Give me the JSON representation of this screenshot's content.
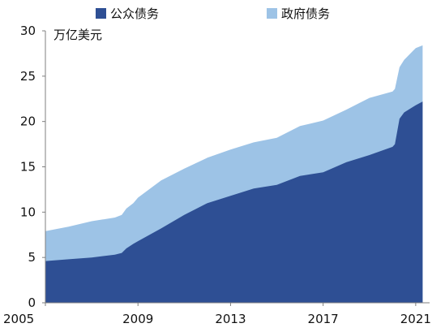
{
  "chart_data": {
    "type": "area",
    "stacked": true,
    "ylabel": "万亿美元",
    "ylim": [
      0,
      30
    ],
    "xlim": [
      2005,
      2021.6
    ],
    "yticks": [
      0,
      5,
      10,
      15,
      20,
      25,
      30
    ],
    "xticks": [
      2005,
      2009,
      2013,
      2017,
      2021
    ],
    "grid": false,
    "legend_position": "top",
    "series": [
      {
        "name": "公众债务",
        "color": "#2e4f94",
        "points": [
          [
            2005,
            4.6
          ],
          [
            2006,
            4.8
          ],
          [
            2007,
            5.0
          ],
          [
            2008,
            5.3
          ],
          [
            2008.3,
            5.5
          ],
          [
            2008.5,
            6.0
          ],
          [
            2008.8,
            6.5
          ],
          [
            2009,
            6.8
          ],
          [
            2010,
            8.2
          ],
          [
            2011,
            9.7
          ],
          [
            2012,
            11.0
          ],
          [
            2013,
            11.8
          ],
          [
            2014,
            12.6
          ],
          [
            2015,
            13.0
          ],
          [
            2016,
            14.0
          ],
          [
            2017,
            14.4
          ],
          [
            2018,
            15.5
          ],
          [
            2019,
            16.3
          ],
          [
            2020,
            17.2
          ],
          [
            2020.1,
            17.5
          ],
          [
            2020.3,
            20.3
          ],
          [
            2020.5,
            21.0
          ],
          [
            2021,
            21.8
          ],
          [
            2021.3,
            22.2
          ]
        ]
      },
      {
        "name": "政府债务",
        "color": "#9dc3e6",
        "points": [
          [
            2005,
            7.9
          ],
          [
            2006,
            8.4
          ],
          [
            2007,
            9.0
          ],
          [
            2008,
            9.4
          ],
          [
            2008.3,
            9.7
          ],
          [
            2008.5,
            10.4
          ],
          [
            2008.8,
            11.0
          ],
          [
            2009,
            11.6
          ],
          [
            2010,
            13.5
          ],
          [
            2011,
            14.8
          ],
          [
            2012,
            16.0
          ],
          [
            2013,
            16.9
          ],
          [
            2014,
            17.7
          ],
          [
            2015,
            18.2
          ],
          [
            2016,
            19.5
          ],
          [
            2017,
            20.1
          ],
          [
            2018,
            21.3
          ],
          [
            2019,
            22.6
          ],
          [
            2020,
            23.3
          ],
          [
            2020.1,
            23.6
          ],
          [
            2020.3,
            26.0
          ],
          [
            2020.5,
            26.8
          ],
          [
            2021,
            28.1
          ],
          [
            2021.3,
            28.4
          ]
        ]
      }
    ]
  }
}
